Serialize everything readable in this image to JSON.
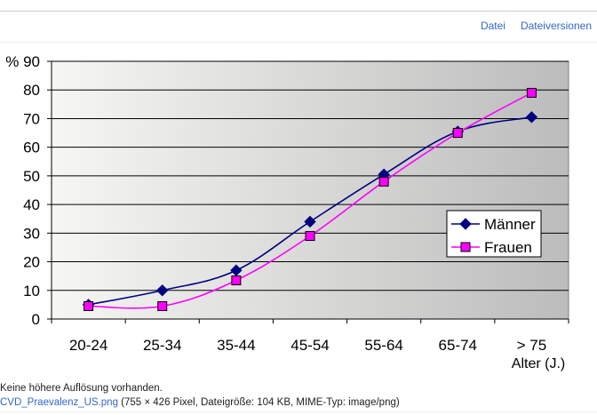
{
  "tabs": [
    {
      "label": "Datei"
    },
    {
      "label": "Dateiversionen"
    }
  ],
  "caption": "Keine höhere Auflösung vorhanden.",
  "file": {
    "name": "CVD_Praevalenz_US.png",
    "info": " (755 × 426 Pixel, Dateigröße: 104 KB, MIME-Typ: image/png)"
  },
  "colors": {
    "link": "#3366cc",
    "maenner": "#000080",
    "frauen": "#ff00ff"
  },
  "chart_data": {
    "type": "line",
    "categories": [
      "20-24",
      "25-34",
      "35-44",
      "45-54",
      "55-64",
      "65-74",
      "> 75"
    ],
    "series": [
      {
        "name": "Männer",
        "values": [
          5,
          10,
          17,
          34,
          50.5,
          65.5,
          70.5
        ],
        "marker": "diamond"
      },
      {
        "name": "Frauen",
        "values": [
          4.5,
          4.5,
          13.5,
          29,
          48,
          65,
          79
        ],
        "marker": "square"
      }
    ],
    "ylabel": "%",
    "xlabel": "Alter (J.)",
    "ylim": [
      0,
      90
    ],
    "yticks": [
      0,
      10,
      20,
      30,
      40,
      50,
      60,
      70,
      80,
      90
    ],
    "grid": true,
    "legend_position": "right"
  }
}
